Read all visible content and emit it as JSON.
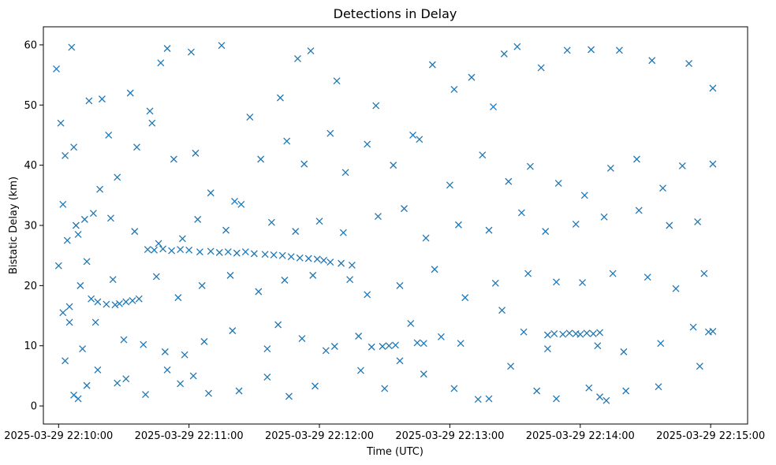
{
  "chart_data": {
    "type": "scatter",
    "title": "Detections in Delay",
    "xlabel": "Time (UTC)",
    "ylabel": "Bistatic Delay (km)",
    "marker": "x",
    "color": "#1f77b4",
    "grid": false,
    "xlim": [
      "2025-03-29 22:09:53",
      "2025-03-29 22:15:17"
    ],
    "ylim": [
      -3,
      63
    ],
    "x_tick_labels": [
      "2025-03-29 22:10:00",
      "2025-03-29 22:11:00",
      "2025-03-29 22:12:00",
      "2025-03-29 22:13:00",
      "2025-03-29 22:14:00",
      "2025-03-29 22:15:00"
    ],
    "y_tick_labels": [
      "0",
      "10",
      "20",
      "30",
      "40",
      "50",
      "60"
    ],
    "y_ticks": [
      0,
      10,
      20,
      30,
      40,
      50,
      60
    ],
    "series": [
      {
        "points": [
          [
            "2025-03-29 22:10:04",
            27.5
          ],
          [
            "2025-03-29 22:10:08",
            30.0
          ],
          [
            "2025-03-29 22:10:12",
            31.0
          ],
          [
            "2025-03-29 22:10:15",
            17.8
          ],
          [
            "2025-03-29 22:10:18",
            17.3
          ],
          [
            "2025-03-29 22:10:22",
            16.9
          ],
          [
            "2025-03-29 22:10:26",
            16.8
          ],
          [
            "2025-03-29 22:10:28",
            17.0
          ],
          [
            "2025-03-29 22:10:31",
            17.3
          ],
          [
            "2025-03-29 22:10:34",
            17.5
          ],
          [
            "2025-03-29 22:10:37",
            17.8
          ],
          [
            "2025-03-29 22:10:41",
            26.0
          ],
          [
            "2025-03-29 22:10:44",
            25.9
          ],
          [
            "2025-03-29 22:10:48",
            26.1
          ],
          [
            "2025-03-29 22:10:52",
            25.8
          ],
          [
            "2025-03-29 22:10:56",
            26.0
          ],
          [
            "2025-03-29 22:11:00",
            25.9
          ],
          [
            "2025-03-29 22:11:05",
            25.6
          ],
          [
            "2025-03-29 22:11:10",
            25.7
          ],
          [
            "2025-03-29 22:11:14",
            25.5
          ],
          [
            "2025-03-29 22:11:18",
            25.6
          ],
          [
            "2025-03-29 22:11:22",
            25.4
          ],
          [
            "2025-03-29 22:11:26",
            25.6
          ],
          [
            "2025-03-29 22:11:30",
            25.3
          ],
          [
            "2025-03-29 22:11:35",
            25.2
          ],
          [
            "2025-03-29 22:11:39",
            25.1
          ],
          [
            "2025-03-29 22:11:43",
            25.0
          ],
          [
            "2025-03-29 22:11:47",
            24.8
          ],
          [
            "2025-03-29 22:11:51",
            24.6
          ],
          [
            "2025-03-29 22:11:55",
            24.5
          ],
          [
            "2025-03-29 22:11:59",
            24.4
          ],
          [
            "2025-03-29 22:12:02",
            24.2
          ],
          [
            "2025-03-29 22:12:05",
            23.9
          ],
          [
            "2025-03-29 22:12:10",
            23.7
          ],
          [
            "2025-03-29 22:12:15",
            23.4
          ],
          [
            "2025-03-29 22:12:03",
            9.2
          ],
          [
            "2025-03-29 22:12:29",
            9.9
          ],
          [
            "2025-03-29 22:12:32",
            10.0
          ],
          [
            "2025-03-29 22:12:35",
            10.1
          ],
          [
            "2025-03-29 22:12:45",
            10.5
          ],
          [
            "2025-03-29 22:12:48",
            10.4
          ],
          [
            "2025-03-29 22:13:45",
            11.8
          ],
          [
            "2025-03-29 22:13:48",
            12.0
          ],
          [
            "2025-03-29 22:13:52",
            11.9
          ],
          [
            "2025-03-29 22:13:55",
            12.1
          ],
          [
            "2025-03-29 22:13:58",
            12.0
          ],
          [
            "2025-03-29 22:14:00",
            11.9
          ],
          [
            "2025-03-29 22:14:03",
            12.1
          ],
          [
            "2025-03-29 22:14:06",
            12.0
          ],
          [
            "2025-03-29 22:14:09",
            12.2
          ],
          [
            "2025-03-29 22:14:59",
            12.3
          ],
          [
            "2025-03-29 22:15:01",
            12.4
          ],
          [
            "2025-03-29 22:09:59",
            56.0
          ],
          [
            "2025-03-29 22:10:06",
            59.6
          ],
          [
            "2025-03-29 22:10:20",
            51.0
          ],
          [
            "2025-03-29 22:10:33",
            52.0
          ],
          [
            "2025-03-29 22:10:42",
            49.0
          ],
          [
            "2025-03-29 22:10:47",
            57.0
          ],
          [
            "2025-03-29 22:10:50",
            59.4
          ],
          [
            "2025-03-29 22:11:01",
            58.8
          ],
          [
            "2025-03-29 22:11:15",
            59.9
          ],
          [
            "2025-03-29 22:11:28",
            48.0
          ],
          [
            "2025-03-29 22:11:42",
            51.2
          ],
          [
            "2025-03-29 22:11:50",
            57.7
          ],
          [
            "2025-03-29 22:11:56",
            59.0
          ],
          [
            "2025-03-29 22:12:08",
            54.0
          ],
          [
            "2025-03-29 22:12:26",
            49.9
          ],
          [
            "2025-03-29 22:12:43",
            45.0
          ],
          [
            "2025-03-29 22:12:52",
            56.7
          ],
          [
            "2025-03-29 22:13:02",
            52.6
          ],
          [
            "2025-03-29 22:13:10",
            54.6
          ],
          [
            "2025-03-29 22:13:20",
            49.7
          ],
          [
            "2025-03-29 22:13:25",
            58.5
          ],
          [
            "2025-03-29 22:13:31",
            59.7
          ],
          [
            "2025-03-29 22:13:42",
            56.2
          ],
          [
            "2025-03-29 22:13:54",
            59.1
          ],
          [
            "2025-03-29 22:14:05",
            59.2
          ],
          [
            "2025-03-29 22:14:18",
            59.1
          ],
          [
            "2025-03-29 22:14:33",
            57.4
          ],
          [
            "2025-03-29 22:14:50",
            56.9
          ],
          [
            "2025-03-29 22:15:01",
            52.8
          ],
          [
            "2025-03-29 22:10:01",
            47.0
          ],
          [
            "2025-03-29 22:10:03",
            41.6
          ],
          [
            "2025-03-29 22:10:07",
            43.0
          ],
          [
            "2025-03-29 22:10:14",
            50.7
          ],
          [
            "2025-03-29 22:10:19",
            36.0
          ],
          [
            "2025-03-29 22:10:23",
            45.0
          ],
          [
            "2025-03-29 22:10:27",
            38.0
          ],
          [
            "2025-03-29 22:10:36",
            43.0
          ],
          [
            "2025-03-29 22:10:43",
            47.0
          ],
          [
            "2025-03-29 22:10:53",
            41.0
          ],
          [
            "2025-03-29 22:11:03",
            42.0
          ],
          [
            "2025-03-29 22:11:10",
            35.4
          ],
          [
            "2025-03-29 22:11:21",
            34.0
          ],
          [
            "2025-03-29 22:11:33",
            41.0
          ],
          [
            "2025-03-29 22:11:45",
            44.0
          ],
          [
            "2025-03-29 22:11:53",
            40.2
          ],
          [
            "2025-03-29 22:12:05",
            45.3
          ],
          [
            "2025-03-29 22:12:12",
            38.8
          ],
          [
            "2025-03-29 22:12:22",
            43.5
          ],
          [
            "2025-03-29 22:12:34",
            40.0
          ],
          [
            "2025-03-29 22:12:46",
            44.3
          ],
          [
            "2025-03-29 22:13:00",
            36.7
          ],
          [
            "2025-03-29 22:13:15",
            41.7
          ],
          [
            "2025-03-29 22:13:27",
            37.3
          ],
          [
            "2025-03-29 22:13:37",
            39.8
          ],
          [
            "2025-03-29 22:13:50",
            37.0
          ],
          [
            "2025-03-29 22:14:02",
            35.0
          ],
          [
            "2025-03-29 22:14:14",
            39.5
          ],
          [
            "2025-03-29 22:14:26",
            41.0
          ],
          [
            "2025-03-29 22:14:38",
            36.2
          ],
          [
            "2025-03-29 22:14:47",
            39.9
          ],
          [
            "2025-03-29 22:15:01",
            40.2
          ],
          [
            "2025-03-29 22:10:02",
            33.5
          ],
          [
            "2025-03-29 22:10:09",
            28.5
          ],
          [
            "2025-03-29 22:10:16",
            32.0
          ],
          [
            "2025-03-29 22:10:24",
            31.2
          ],
          [
            "2025-03-29 22:10:35",
            29.0
          ],
          [
            "2025-03-29 22:10:46",
            27.0
          ],
          [
            "2025-03-29 22:10:57",
            27.8
          ],
          [
            "2025-03-29 22:11:04",
            31.0
          ],
          [
            "2025-03-29 22:11:17",
            29.2
          ],
          [
            "2025-03-29 22:11:24",
            33.5
          ],
          [
            "2025-03-29 22:11:38",
            30.5
          ],
          [
            "2025-03-29 22:11:49",
            29.0
          ],
          [
            "2025-03-29 22:12:00",
            30.7
          ],
          [
            "2025-03-29 22:12:11",
            28.8
          ],
          [
            "2025-03-29 22:12:27",
            31.5
          ],
          [
            "2025-03-29 22:12:39",
            32.8
          ],
          [
            "2025-03-29 22:12:49",
            27.9
          ],
          [
            "2025-03-29 22:13:04",
            30.1
          ],
          [
            "2025-03-29 22:13:18",
            29.2
          ],
          [
            "2025-03-29 22:13:33",
            32.1
          ],
          [
            "2025-03-29 22:13:44",
            29.0
          ],
          [
            "2025-03-29 22:13:58",
            30.2
          ],
          [
            "2025-03-29 22:14:11",
            31.4
          ],
          [
            "2025-03-29 22:14:27",
            32.5
          ],
          [
            "2025-03-29 22:14:41",
            30.0
          ],
          [
            "2025-03-29 22:14:54",
            30.6
          ],
          [
            "2025-03-29 22:10:00",
            23.3
          ],
          [
            "2025-03-29 22:10:05",
            16.5
          ],
          [
            "2025-03-29 22:10:10",
            20.0
          ],
          [
            "2025-03-29 22:10:13",
            24.0
          ],
          [
            "2025-03-29 22:10:25",
            21.0
          ],
          [
            "2025-03-29 22:10:45",
            21.5
          ],
          [
            "2025-03-29 22:10:55",
            18.0
          ],
          [
            "2025-03-29 22:11:06",
            20.0
          ],
          [
            "2025-03-29 22:11:19",
            21.7
          ],
          [
            "2025-03-29 22:11:32",
            19.0
          ],
          [
            "2025-03-29 22:11:44",
            20.9
          ],
          [
            "2025-03-29 22:11:57",
            21.7
          ],
          [
            "2025-03-29 22:12:14",
            21.0
          ],
          [
            "2025-03-29 22:12:22",
            18.5
          ],
          [
            "2025-03-29 22:12:37",
            20.0
          ],
          [
            "2025-03-29 22:12:53",
            22.7
          ],
          [
            "2025-03-29 22:13:07",
            18.0
          ],
          [
            "2025-03-29 22:13:21",
            20.4
          ],
          [
            "2025-03-29 22:13:36",
            22.0
          ],
          [
            "2025-03-29 22:13:49",
            20.6
          ],
          [
            "2025-03-29 22:14:01",
            20.5
          ],
          [
            "2025-03-29 22:14:15",
            22.0
          ],
          [
            "2025-03-29 22:14:31",
            21.4
          ],
          [
            "2025-03-29 22:14:44",
            19.5
          ],
          [
            "2025-03-29 22:14:57",
            22.0
          ],
          [
            "2025-03-29 22:10:02",
            15.5
          ],
          [
            "2025-03-29 22:10:05",
            13.9
          ],
          [
            "2025-03-29 22:10:11",
            9.5
          ],
          [
            "2025-03-29 22:10:17",
            13.9
          ],
          [
            "2025-03-29 22:10:30",
            11.0
          ],
          [
            "2025-03-29 22:10:39",
            10.2
          ],
          [
            "2025-03-29 22:10:49",
            9.0
          ],
          [
            "2025-03-29 22:10:58",
            8.5
          ],
          [
            "2025-03-29 22:11:07",
            10.7
          ],
          [
            "2025-03-29 22:11:20",
            12.5
          ],
          [
            "2025-03-29 22:11:36",
            9.5
          ],
          [
            "2025-03-29 22:11:41",
            13.5
          ],
          [
            "2025-03-29 22:11:52",
            11.2
          ],
          [
            "2025-03-29 22:12:07",
            9.9
          ],
          [
            "2025-03-29 22:12:18",
            11.6
          ],
          [
            "2025-03-29 22:12:24",
            9.8
          ],
          [
            "2025-03-29 22:12:42",
            13.7
          ],
          [
            "2025-03-29 22:12:56",
            11.5
          ],
          [
            "2025-03-29 22:13:05",
            10.4
          ],
          [
            "2025-03-29 22:13:24",
            15.9
          ],
          [
            "2025-03-29 22:13:34",
            12.3
          ],
          [
            "2025-03-29 22:13:45",
            9.5
          ],
          [
            "2025-03-29 22:14:08",
            10.0
          ],
          [
            "2025-03-29 22:14:20",
            9.0
          ],
          [
            "2025-03-29 22:14:37",
            10.4
          ],
          [
            "2025-03-29 22:14:52",
            13.1
          ],
          [
            "2025-03-29 22:10:03",
            7.5
          ],
          [
            "2025-03-29 22:10:07",
            1.8
          ],
          [
            "2025-03-29 22:10:09",
            1.2
          ],
          [
            "2025-03-29 22:10:13",
            3.4
          ],
          [
            "2025-03-29 22:10:18",
            6.0
          ],
          [
            "2025-03-29 22:10:27",
            3.8
          ],
          [
            "2025-03-29 22:10:31",
            4.5
          ],
          [
            "2025-03-29 22:10:40",
            1.9
          ],
          [
            "2025-03-29 22:10:50",
            6.0
          ],
          [
            "2025-03-29 22:10:56",
            3.7
          ],
          [
            "2025-03-29 22:11:02",
            5.0
          ],
          [
            "2025-03-29 22:11:09",
            2.1
          ],
          [
            "2025-03-29 22:11:23",
            2.5
          ],
          [
            "2025-03-29 22:11:36",
            4.8
          ],
          [
            "2025-03-29 22:11:46",
            1.6
          ],
          [
            "2025-03-29 22:11:58",
            3.3
          ],
          [
            "2025-03-29 22:12:19",
            5.9
          ],
          [
            "2025-03-29 22:12:30",
            2.9
          ],
          [
            "2025-03-29 22:12:37",
            7.5
          ],
          [
            "2025-03-29 22:12:48",
            5.3
          ],
          [
            "2025-03-29 22:13:02",
            2.9
          ],
          [
            "2025-03-29 22:13:13",
            1.1
          ],
          [
            "2025-03-29 22:13:18",
            1.2
          ],
          [
            "2025-03-29 22:13:28",
            6.6
          ],
          [
            "2025-03-29 22:13:40",
            2.5
          ],
          [
            "2025-03-29 22:13:49",
            1.2
          ],
          [
            "2025-03-29 22:14:04",
            3.0
          ],
          [
            "2025-03-29 22:14:09",
            1.5
          ],
          [
            "2025-03-29 22:14:12",
            0.9
          ],
          [
            "2025-03-29 22:14:21",
            2.5
          ],
          [
            "2025-03-29 22:14:36",
            3.2
          ],
          [
            "2025-03-29 22:14:55",
            6.6
          ]
        ]
      }
    ]
  }
}
